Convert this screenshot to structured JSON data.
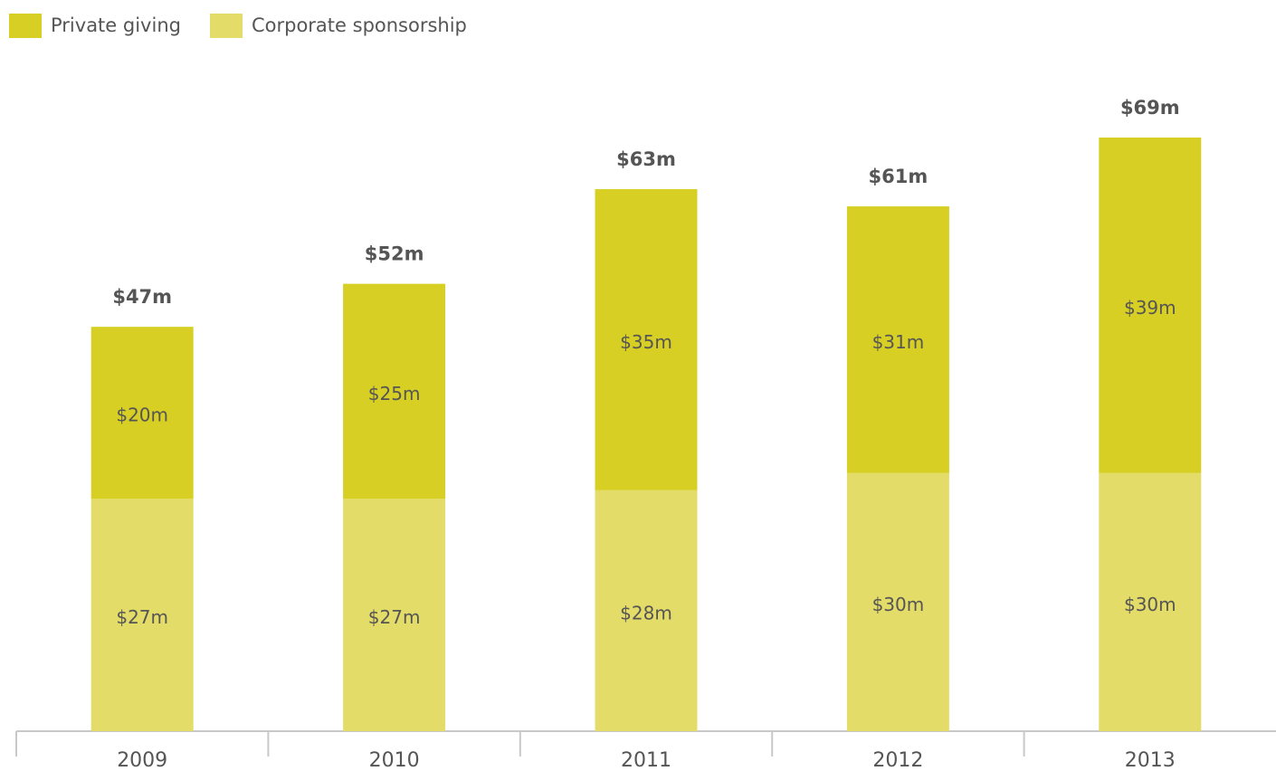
{
  "chart_data": {
    "type": "stacked-bar",
    "categories": [
      "2009",
      "2010",
      "2011",
      "2012",
      "2013"
    ],
    "series": [
      {
        "name": "Private giving",
        "color": "#d7cf24",
        "values": [
          20,
          25,
          35,
          31,
          39
        ],
        "value_labels": [
          "$20m",
          "$25m",
          "$35m",
          "$31m",
          "$39m"
        ]
      },
      {
        "name": "Corporate sponsorship",
        "color": "#e4dc68",
        "values": [
          27,
          27,
          28,
          30,
          30
        ],
        "value_labels": [
          "$27m",
          "$27m",
          "$28m",
          "$30m",
          "$30m"
        ]
      }
    ],
    "totals": {
      "values": [
        47,
        52,
        63,
        61,
        69
      ],
      "value_labels": [
        "$47m",
        "$52m",
        "$63m",
        "$61m",
        "$69m"
      ]
    },
    "legend": "top-left"
  }
}
